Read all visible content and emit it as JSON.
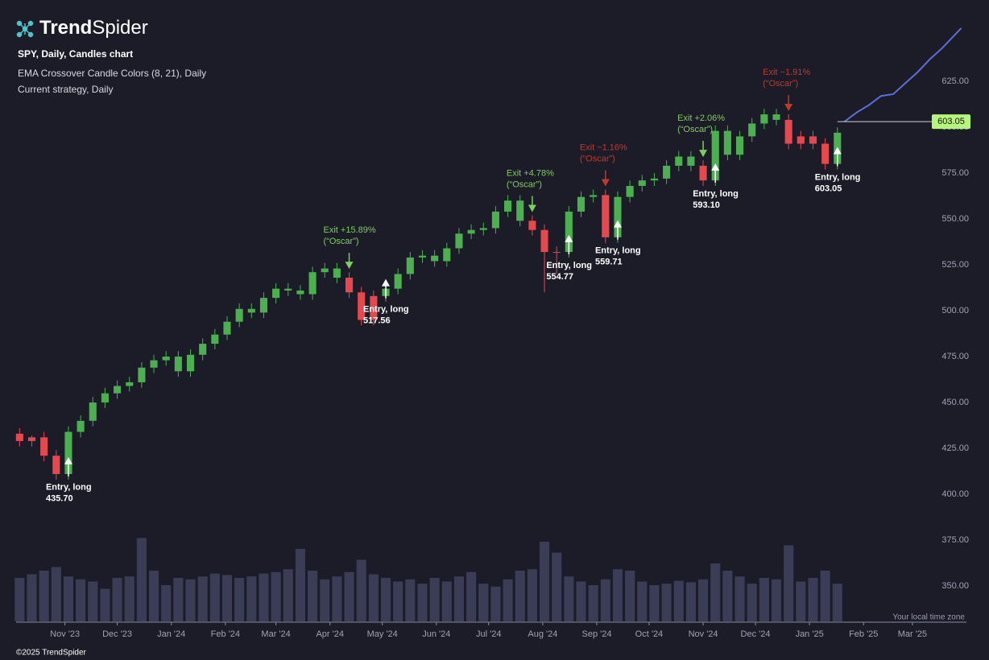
{
  "header": {
    "logo_bold": "Trend",
    "logo_light": "Spider",
    "symbol_line": "SPY, Daily, Candles chart",
    "indicator_line": "EMA Crossover Candle Colors (8, 21), Daily",
    "strategy_line": "Current strategy, Daily"
  },
  "footer": {
    "copyright": "©2025 TrendSpider",
    "timezone": "Your local time zone"
  },
  "chart_data": {
    "type": "candlestick",
    "x": [
      "2023-10-06",
      "2023-10-13",
      "2023-10-20",
      "2023-10-27",
      "2023-11-03",
      "2023-11-10",
      "2023-11-17",
      "2023-11-24",
      "2023-12-01",
      "2023-12-08",
      "2023-12-15",
      "2023-12-22",
      "2023-12-29",
      "2024-01-05",
      "2024-01-12",
      "2024-01-19",
      "2024-01-26",
      "2024-02-02",
      "2024-02-09",
      "2024-02-16",
      "2024-02-23",
      "2024-03-01",
      "2024-03-08",
      "2024-03-15",
      "2024-03-22",
      "2024-03-29",
      "2024-04-05",
      "2024-04-12",
      "2024-04-19",
      "2024-04-26",
      "2024-05-03",
      "2024-05-10",
      "2024-05-17",
      "2024-05-24",
      "2024-05-31",
      "2024-06-07",
      "2024-06-14",
      "2024-06-21",
      "2024-06-28",
      "2024-07-05",
      "2024-07-12",
      "2024-07-19",
      "2024-07-26",
      "2024-08-02",
      "2024-08-09",
      "2024-08-16",
      "2024-08-23",
      "2024-08-30",
      "2024-09-06",
      "2024-09-13",
      "2024-09-20",
      "2024-09-27",
      "2024-10-04",
      "2024-10-11",
      "2024-10-18",
      "2024-10-25",
      "2024-11-01",
      "2024-11-08",
      "2024-11-15",
      "2024-11-22",
      "2024-11-29",
      "2024-12-06",
      "2024-12-13",
      "2024-12-20",
      "2024-12-27",
      "2025-01-03",
      "2025-01-10",
      "2025-01-17"
    ],
    "open": [
      433,
      429,
      431,
      421,
      411,
      434,
      440,
      450,
      455,
      459,
      461,
      469,
      473,
      475,
      467,
      476,
      482,
      487,
      494,
      501,
      499,
      507,
      512,
      511,
      509,
      521,
      523,
      518,
      510,
      495,
      508,
      512,
      520,
      529,
      530,
      527,
      534,
      542,
      544,
      545,
      554,
      560,
      549,
      544,
      532,
      532,
      554,
      562,
      563,
      540,
      562,
      568,
      571,
      572,
      579,
      584,
      579,
      571,
      598,
      585,
      595,
      602,
      607,
      604,
      591,
      595,
      591,
      580
    ],
    "high": [
      436,
      432,
      434,
      424,
      437,
      443,
      453,
      458,
      462,
      464,
      472,
      476,
      478,
      478,
      479,
      485,
      490,
      497,
      504,
      504,
      510,
      515,
      515,
      514,
      524,
      526,
      526,
      521,
      513,
      511,
      515,
      523,
      532,
      533,
      533,
      537,
      545,
      547,
      548,
      557,
      563,
      563,
      552,
      547,
      535,
      557,
      565,
      566,
      566,
      565,
      571,
      574,
      575,
      582,
      587,
      587,
      582,
      601,
      601,
      598,
      605,
      610,
      610,
      607,
      598,
      598,
      594,
      600
    ],
    "low": [
      426,
      426,
      418,
      408,
      408,
      431,
      437,
      447,
      452,
      456,
      458,
      466,
      470,
      464,
      464,
      473,
      479,
      484,
      491,
      496,
      496,
      504,
      508,
      506,
      506,
      518,
      515,
      507,
      492,
      492,
      505,
      509,
      517,
      526,
      524,
      524,
      531,
      539,
      541,
      542,
      551,
      546,
      541,
      510,
      520,
      529,
      551,
      559,
      537,
      537,
      559,
      565,
      568,
      569,
      576,
      576,
      568,
      568,
      582,
      582,
      592,
      599,
      601,
      588,
      588,
      588,
      577,
      577
    ],
    "close": [
      429,
      431,
      421,
      411,
      434,
      440,
      450,
      455,
      459,
      461,
      469,
      473,
      475,
      467,
      476,
      482,
      487,
      494,
      501,
      499,
      507,
      512,
      511,
      509,
      521,
      523,
      518,
      510,
      495,
      508,
      512,
      520,
      529,
      530,
      527,
      534,
      542,
      544,
      545,
      554,
      560,
      549,
      544,
      532,
      532,
      554,
      562,
      563,
      540,
      562,
      568,
      571,
      572,
      579,
      584,
      579,
      571,
      598,
      585,
      595,
      602,
      607,
      604,
      591,
      595,
      591,
      580,
      597
    ],
    "colors": [
      "#e5484d",
      "#e5484d",
      "#e5484d",
      "#e5484d",
      "#4caf50",
      "#4caf50",
      "#4caf50",
      "#4caf50",
      "#4caf50",
      "#4caf50",
      "#4caf50",
      "#4caf50",
      "#4caf50",
      "#4caf50",
      "#4caf50",
      "#4caf50",
      "#4caf50",
      "#4caf50",
      "#4caf50",
      "#4caf50",
      "#4caf50",
      "#4caf50",
      "#4caf50",
      "#4caf50",
      "#4caf50",
      "#4caf50",
      "#4caf50",
      "#e5484d",
      "#e5484d",
      "#e5484d",
      "#4caf50",
      "#4caf50",
      "#4caf50",
      "#4caf50",
      "#4caf50",
      "#4caf50",
      "#4caf50",
      "#4caf50",
      "#4caf50",
      "#4caf50",
      "#4caf50",
      "#4caf50",
      "#e5484d",
      "#e5484d",
      "#e5484d",
      "#4caf50",
      "#4caf50",
      "#4caf50",
      "#e5484d",
      "#4caf50",
      "#4caf50",
      "#4caf50",
      "#4caf50",
      "#4caf50",
      "#4caf50",
      "#4caf50",
      "#e5484d",
      "#4caf50",
      "#4caf50",
      "#4caf50",
      "#4caf50",
      "#4caf50",
      "#4caf50",
      "#e5484d",
      "#e5484d",
      "#e5484d",
      "#e5484d",
      "#4caf50"
    ],
    "volume": [
      60,
      65,
      70,
      75,
      62,
      58,
      55,
      45,
      60,
      62,
      115,
      70,
      50,
      60,
      58,
      62,
      66,
      64,
      60,
      62,
      66,
      68,
      72,
      100,
      70,
      58,
      62,
      68,
      85,
      65,
      60,
      55,
      58,
      52,
      60,
      55,
      62,
      68,
      52,
      48,
      58,
      70,
      72,
      110,
      95,
      62,
      55,
      50,
      58,
      72,
      70,
      55,
      50,
      52,
      56,
      54,
      58,
      80,
      70,
      62,
      52,
      60,
      58,
      105,
      55,
      60,
      70,
      52
    ],
    "volume_color": "#3a3d55",
    "forecast": {
      "color": "#5b6fd6",
      "x": [
        "2025-01-21",
        "2025-01-28",
        "2025-02-04",
        "2025-02-11",
        "2025-02-18",
        "2025-02-25",
        "2025-03-04",
        "2025-03-11",
        "2025-03-18",
        "2025-03-25",
        "2025-03-29"
      ],
      "values": [
        603,
        608,
        612,
        617,
        618,
        624,
        630,
        637,
        643,
        650,
        654
      ]
    },
    "last_price": 603.05,
    "last_price_color": "#b5f57e",
    "annotations": [
      {
        "type": "entry",
        "date": "2023-11-03",
        "text": "Entry, long",
        "price": "435.70"
      },
      {
        "type": "exit",
        "date": "2024-04-12",
        "text": "Exit +15.89%",
        "note": "(“Oscar”)",
        "color": "#7ccf5a"
      },
      {
        "type": "entry",
        "date": "2024-05-03",
        "text": "Entry, long",
        "price": "517.56"
      },
      {
        "type": "exit",
        "date": "2024-07-26",
        "text": "Exit +4.78%",
        "note": "(“Oscar”)",
        "color": "#7ccf5a"
      },
      {
        "type": "entry",
        "date": "2024-08-16",
        "text": "Entry, long",
        "price": "554.77"
      },
      {
        "type": "exit",
        "date": "2024-09-06",
        "text": "Exit −1.16%",
        "note": "(“Oscar”)",
        "color": "#c0392b"
      },
      {
        "type": "entry",
        "date": "2024-09-13",
        "text": "Entry, long",
        "price": "559.71"
      },
      {
        "type": "exit",
        "date": "2024-11-01",
        "text": "Exit +2.06%",
        "note": "(“Oscar”)",
        "color": "#7ccf5a"
      },
      {
        "type": "entry",
        "date": "2024-11-08",
        "text": "Entry, long",
        "price": "593.10"
      },
      {
        "type": "exit",
        "date": "2024-12-20",
        "text": "Exit −1.91%",
        "note": "(“Oscar”)",
        "color": "#c0392b"
      },
      {
        "type": "entry",
        "date": "2025-01-17",
        "text": "Entry, long",
        "price": "603.05"
      }
    ],
    "xlim": [
      "2023-10-04",
      "2025-04-01"
    ],
    "xticks": [
      {
        "value": "2023-11-01",
        "label": "Nov '23"
      },
      {
        "value": "2023-12-01",
        "label": "Dec '23"
      },
      {
        "value": "2024-01-01",
        "label": "Jan '24"
      },
      {
        "value": "2024-02-01",
        "label": "Feb '24"
      },
      {
        "value": "2024-03-01",
        "label": "Mar '24"
      },
      {
        "value": "2024-04-01",
        "label": "Apr '24"
      },
      {
        "value": "2024-05-01",
        "label": "May '24"
      },
      {
        "value": "2024-06-01",
        "label": "Jun '24"
      },
      {
        "value": "2024-07-01",
        "label": "Jul '24"
      },
      {
        "value": "2024-08-01",
        "label": "Aug '24"
      },
      {
        "value": "2024-09-01",
        "label": "Sep '24"
      },
      {
        "value": "2024-10-01",
        "label": "Oct '24"
      },
      {
        "value": "2024-11-01",
        "label": "Nov '24"
      },
      {
        "value": "2024-12-01",
        "label": "Dec '24"
      },
      {
        "value": "2025-01-01",
        "label": "Jan '25"
      },
      {
        "value": "2025-02-01",
        "label": "Feb '25"
      },
      {
        "value": "2025-03-01",
        "label": "Mar '25"
      }
    ],
    "ylim": [
      330.3,
      669.3
    ],
    "yticks": [
      {
        "value": 350,
        "label": "350.00"
      },
      {
        "value": 375,
        "label": "375.00"
      },
      {
        "value": 400,
        "label": "400.00"
      },
      {
        "value": 425,
        "label": "425.00"
      },
      {
        "value": 450,
        "label": "450.00"
      },
      {
        "value": 475,
        "label": "475.00"
      },
      {
        "value": 500,
        "label": "500.00"
      },
      {
        "value": 525,
        "label": "525.00"
      },
      {
        "value": 550,
        "label": "550.00"
      },
      {
        "value": 575,
        "label": "575.00"
      },
      {
        "value": 600,
        "label": "600.00"
      },
      {
        "value": 625,
        "label": "625.00"
      }
    ],
    "grid": false
  }
}
